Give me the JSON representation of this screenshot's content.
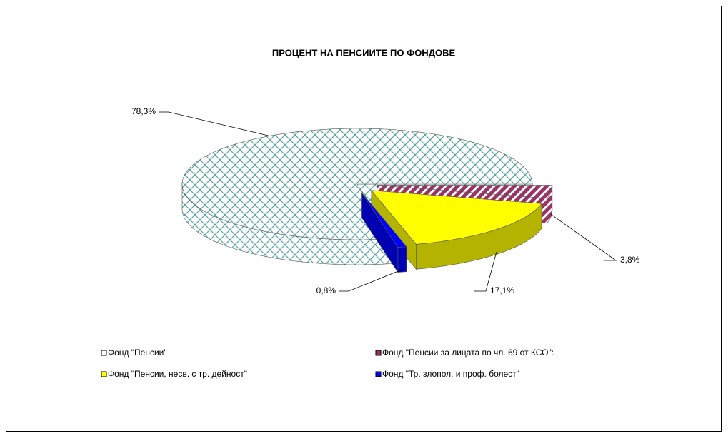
{
  "chart_data": {
    "type": "pie",
    "title": "ПРОЦЕНТ НА ПЕНСИИТЕ ПО ФОНДОВЕ",
    "categories": [
      "Фонд \"Пенсии\"",
      "Фонд \"Пенсии за лицата по чл. 69 от КСО\":",
      "Фонд \"Пенсии, несв. с тр. дейност\"",
      "Фонд \"Тр. злопол. и проф. болест\""
    ],
    "values": [
      78.3,
      3.8,
      17.1,
      0.8
    ],
    "value_labels": [
      "78,3%",
      "3,8%",
      "17,1%",
      "0,8%"
    ],
    "colors": [
      "#ffffff",
      "#993366",
      "#ffff00",
      "#0000ff"
    ],
    "legend": "bottom"
  }
}
